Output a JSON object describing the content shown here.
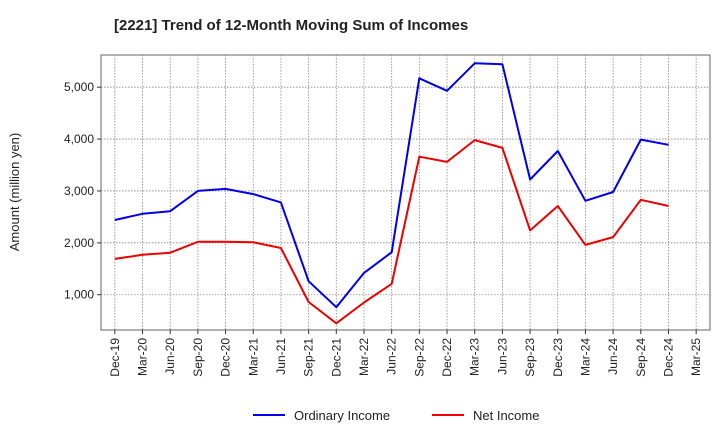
{
  "chart_data": {
    "type": "line",
    "title": "[2221]  Trend of 12-Month Moving Sum of Incomes",
    "xlabel": "",
    "ylabel": "Amount (million yen)",
    "x": [
      "Dec-19",
      "Mar-20",
      "Jun-20",
      "Sep-20",
      "Dec-20",
      "Mar-21",
      "Jun-21",
      "Sep-21",
      "Dec-21",
      "Mar-22",
      "Jun-22",
      "Sep-22",
      "Dec-22",
      "Mar-23",
      "Jun-23",
      "Sep-23",
      "Dec-23",
      "Mar-24",
      "Jun-24",
      "Sep-24",
      "Dec-24",
      "Mar-25"
    ],
    "y_ticks": [
      1000,
      2000,
      3000,
      4000,
      5000
    ],
    "y_tick_labels": [
      "1,000",
      "2,000",
      "3,000",
      "4,000",
      "5,000"
    ],
    "ylim": [
      320,
      5620
    ],
    "grid": true,
    "legend_position": "bottom-center",
    "series": [
      {
        "name": "Ordinary Income",
        "color": "#0000ee",
        "values": [
          2440,
          2560,
          2610,
          3000,
          3040,
          2940,
          2780,
          1260,
          760,
          1420,
          1820,
          5170,
          4930,
          5460,
          5440,
          3220,
          3770,
          2810,
          2980,
          3990,
          3890,
          null
        ]
      },
      {
        "name": "Net Income",
        "color": "#ee0000",
        "values": [
          1690,
          1770,
          1810,
          2020,
          2020,
          2010,
          1900,
          860,
          450,
          850,
          1210,
          3660,
          3560,
          3980,
          3830,
          2240,
          2710,
          1960,
          2110,
          2830,
          2710,
          null
        ]
      }
    ]
  }
}
